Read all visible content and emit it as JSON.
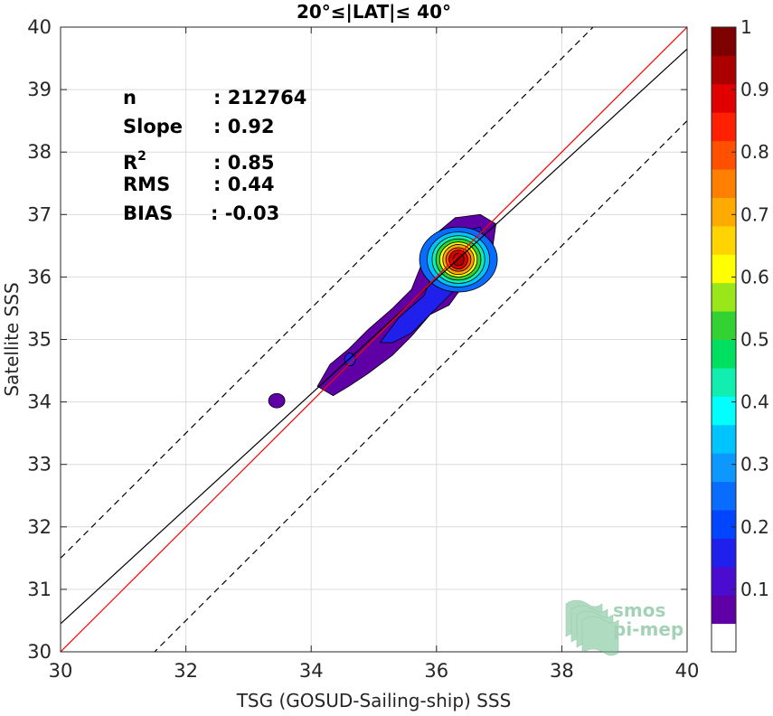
{
  "chart_data": {
    "type": "contour-scatter",
    "title": "20°≤|LAT|≤ 40°",
    "xlabel": "TSG (GOSUD-Sailing-ship) SSS",
    "ylabel": "Satellite SSS",
    "xlim": [
      30,
      40
    ],
    "ylim": [
      30,
      40
    ],
    "xticks": [
      30,
      32,
      34,
      36,
      38,
      40
    ],
    "yticks": [
      30,
      31,
      32,
      33,
      34,
      35,
      36,
      37,
      38,
      39,
      40
    ],
    "grid": true,
    "stats": [
      {
        "label": "n",
        "sep": ":",
        "value": "212764"
      },
      {
        "label": "Slope",
        "sep": ":",
        "value": "0.92"
      },
      {
        "label": "R",
        "sup": "2",
        "sep": ":",
        "value": "0.85"
      },
      {
        "label": "RMS",
        "sep": ":",
        "value": "0.44"
      },
      {
        "label": "BIAS",
        "sep": ":",
        "value": "-0.03"
      }
    ],
    "lines": {
      "identity": {
        "slope": 1,
        "intercept": 0,
        "color": "#ff0000"
      },
      "fit": {
        "slope": 0.92,
        "intercept": 2.85,
        "color": "#000000"
      },
      "upper_bound": {
        "slope": 1,
        "intercept": 1.5,
        "color": "#000000",
        "dash": true
      },
      "lower_bound": {
        "slope": 1,
        "intercept": -1.5,
        "color": "#000000",
        "dash": true
      }
    },
    "density_peak": {
      "x": 36.35,
      "y": 36.28
    },
    "isolated_blob": {
      "x": 33.45,
      "y": 34.02
    },
    "colorbar": {
      "min": 0,
      "max": 1,
      "ticks": [
        "0.1",
        "0.2",
        "0.3",
        "0.4",
        "0.5",
        "0.6",
        "0.7",
        "0.8",
        "0.9",
        "1"
      ],
      "colors": [
        "#ffffff",
        "#5f00a6",
        "#4a0ccf",
        "#2020ec",
        "#0045ff",
        "#0a6cff",
        "#0d98ff",
        "#00c4ff",
        "#00ffff",
        "#10efb0",
        "#00e060",
        "#32d232",
        "#99e619",
        "#ffff00",
        "#ffd400",
        "#ffaa00",
        "#ff7f00",
        "#ff5000",
        "#ff2000",
        "#e00000",
        "#aa0000",
        "#7f0000"
      ]
    }
  },
  "logo": {
    "text_line1": "smos",
    "text_line2": "pi-mep"
  }
}
